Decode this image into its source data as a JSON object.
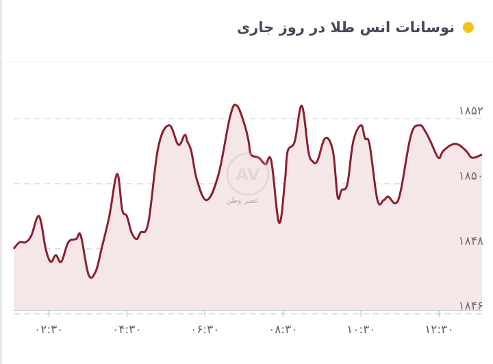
{
  "header": {
    "title": "نوسانات انس طلا در روز جاری",
    "bullet_icon": "yellow-dot-icon"
  },
  "watermark": {
    "logo": "AV",
    "text": "عصر وطن"
  },
  "colors": {
    "line": "#8b1f2e",
    "fill": "#f5e6e8",
    "bullet": "#f2c218",
    "grid": "#dcdcdc"
  },
  "chart_data": {
    "type": "area",
    "title": "نوسانات انس طلا در روز جاری",
    "xlabel": "",
    "ylabel": "",
    "x_ticks": [
      "۰۲:۳۰",
      "۰۴:۳۰",
      "۰۶:۳۰",
      "۰۸:۳۰",
      "۱۰:۳۰",
      "۱۲:۳۰"
    ],
    "x_tick_hours": [
      2.5,
      4.5,
      6.5,
      8.5,
      10.5,
      12.5
    ],
    "y_ticks": [
      "۱۸۵۲",
      "۱۸۵۰",
      "۱۸۴۸",
      "۱۸۴۶"
    ],
    "y_tick_values": [
      1852,
      1850,
      1848,
      1846
    ],
    "xlim": [
      1.6,
      13.6
    ],
    "ylim": [
      1846.1,
      1852.7
    ],
    "grid": true,
    "legend": "none",
    "series": [
      {
        "x": [
          1.6,
          1.75,
          1.9,
          2.05,
          2.25,
          2.42,
          2.55,
          2.68,
          2.82,
          3.0,
          3.2,
          3.32,
          3.52,
          3.7,
          3.85,
          4.05,
          4.25,
          4.38,
          4.5,
          4.62,
          4.75,
          4.85,
          5.05,
          5.3,
          5.58,
          5.82,
          5.98,
          6.05,
          6.15,
          6.3,
          6.55,
          6.85,
          7.15,
          7.32,
          7.52,
          7.62,
          7.68,
          7.88,
          8.05,
          8.2,
          8.4,
          8.55,
          8.62,
          8.8,
          8.98,
          9.15,
          9.25,
          9.38,
          9.58,
          9.78,
          9.9,
          10.0,
          10.15,
          10.3,
          10.5,
          10.6,
          10.72,
          10.92,
          11.08,
          11.2,
          11.38,
          11.52,
          11.78,
          12.0,
          12.15,
          12.28,
          12.48,
          12.6,
          12.82,
          13.0,
          13.2,
          13.35,
          13.6
        ],
        "y": [
          1848.0,
          1848.2,
          1848.2,
          1848.4,
          1849.0,
          1848.0,
          1847.6,
          1847.8,
          1847.6,
          1848.2,
          1848.3,
          1848.4,
          1847.2,
          1847.3,
          1848.0,
          1849.0,
          1850.3,
          1849.2,
          1849.0,
          1848.5,
          1848.3,
          1848.5,
          1848.8,
          1851.1,
          1851.8,
          1851.2,
          1851.5,
          1851.3,
          1851.0,
          1850.1,
          1849.5,
          1850.3,
          1852.1,
          1852.4,
          1851.8,
          1851.3,
          1850.9,
          1850.8,
          1850.6,
          1850.7,
          1848.8,
          1850.1,
          1851.0,
          1851.3,
          1852.4,
          1851.0,
          1850.7,
          1850.7,
          1851.4,
          1851.0,
          1849.6,
          1849.8,
          1850.0,
          1851.3,
          1851.8,
          1851.4,
          1851.2,
          1849.5,
          1849.5,
          1849.6,
          1849.4,
          1849.8,
          1851.5,
          1851.8,
          1851.6,
          1851.3,
          1850.8,
          1851.0,
          1851.2,
          1851.2,
          1851.0,
          1850.8,
          1850.9
        ]
      }
    ]
  }
}
